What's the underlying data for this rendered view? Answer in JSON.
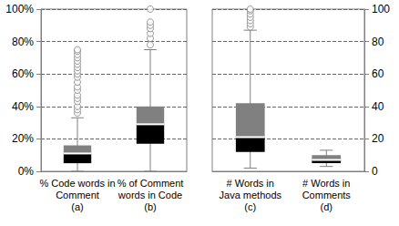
{
  "chart_data": [
    {
      "type": "boxplot",
      "categories": [
        "% Code words in\nComment\n(a)",
        "% of Comment\nwords in Code\n(b)"
      ],
      "values": [
        [
          0,
          5,
          11,
          16,
          33
        ],
        [
          0,
          17,
          29,
          40,
          75
        ]
      ],
      "outliers": [
        [
          36,
          38,
          40,
          43,
          45,
          47,
          50,
          52,
          55,
          58,
          60,
          62,
          64,
          66,
          68,
          70,
          72,
          74,
          75
        ],
        [
          78,
          82,
          85,
          88,
          90,
          92,
          100
        ]
      ],
      "ylim": [
        0,
        100
      ],
      "yticks": [
        {
          "value": 0,
          "label": "0%"
        },
        {
          "value": 20,
          "label": "20%"
        },
        {
          "value": 40,
          "label": "40%"
        },
        {
          "value": 60,
          "label": "60%"
        },
        {
          "value": 80,
          "label": "80%"
        },
        {
          "value": 100,
          "label": "100%"
        }
      ],
      "grid": true,
      "marker": "circle"
    },
    {
      "type": "boxplot",
      "categories": [
        "# Words in\nJava methods\n(c)",
        "# Words in\nComments\n(d)"
      ],
      "values": [
        [
          2,
          12,
          21,
          42,
          87
        ],
        [
          3,
          5,
          7,
          10,
          13
        ]
      ],
      "outliers": [
        [
          89,
          91,
          93,
          95,
          97,
          99,
          100
        ],
        []
      ],
      "ylim": [
        0,
        100
      ],
      "yticks": [
        0,
        20,
        40,
        60,
        80,
        100
      ],
      "grid": true,
      "marker": "circle"
    }
  ]
}
